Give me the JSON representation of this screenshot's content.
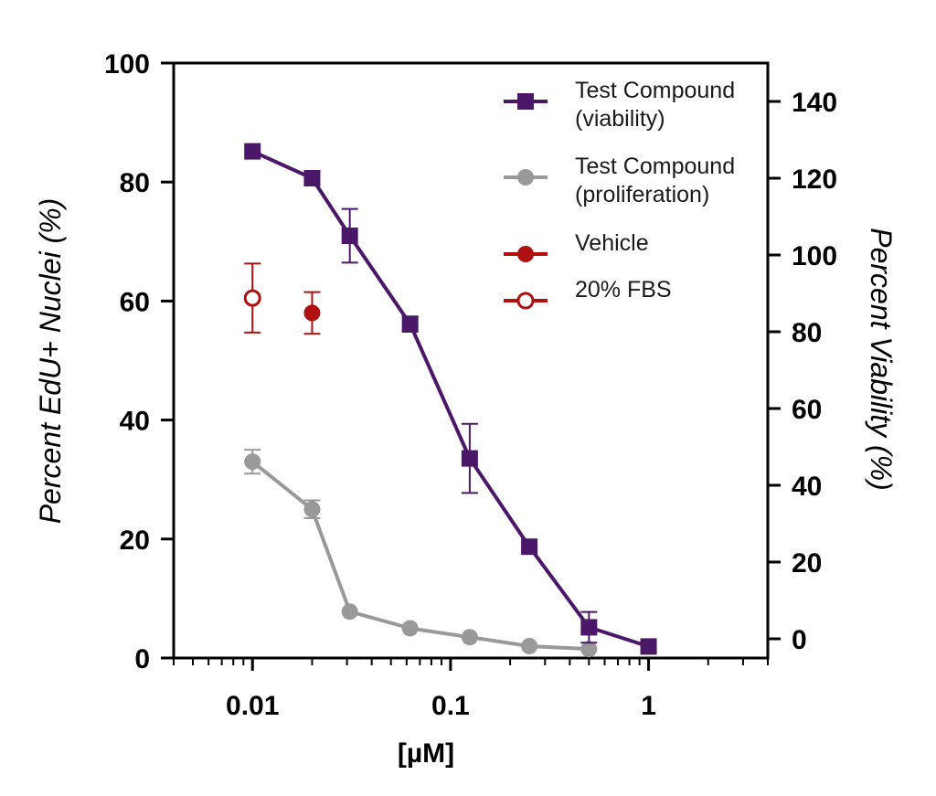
{
  "chart_data": {
    "type": "line",
    "x_scale": "log",
    "xlim": [
      0.004,
      4
    ],
    "xlabel": "[µM]",
    "x_ticks": [
      0.01,
      0.1,
      1
    ],
    "x_tick_labels": [
      "0.01",
      "0.1",
      "1"
    ],
    "ylabel_left": "Percent EdU+ Nuclei (%)",
    "ylim_left": [
      0,
      100
    ],
    "y_ticks_left": [
      0,
      20,
      40,
      60,
      80,
      100
    ],
    "y_tick_labels_left": [
      "0",
      "20",
      "40",
      "60",
      "80",
      "100"
    ],
    "ylabel_right": "Percent Viability (%)",
    "ylim_right": [
      -5,
      150
    ],
    "y_ticks_right": [
      0,
      20,
      40,
      60,
      80,
      100,
      120,
      140
    ],
    "y_tick_labels_right": [
      "0",
      "20",
      "40",
      "60",
      "80",
      "100",
      "120",
      "140"
    ],
    "grid": false,
    "legend_position": "top-right",
    "series": [
      {
        "name": "Test Compound\n(viability)",
        "legend_lines": [
          "Test Compound",
          "(viability)"
        ],
        "axis": "right",
        "color": "#4b1869",
        "marker": "square",
        "filled": true,
        "connected": true,
        "x": [
          0.01,
          0.02,
          0.031,
          0.0625,
          0.125,
          0.25,
          0.5,
          1
        ],
        "y": [
          127,
          120,
          105,
          82,
          47,
          24,
          3,
          -2
        ],
        "err": [
          0,
          0,
          7,
          2,
          9,
          0,
          4,
          0
        ]
      },
      {
        "name": "Test Compound\n(proliferation)",
        "legend_lines": [
          "Test Compound",
          "(proliferation)"
        ],
        "axis": "left",
        "color": "#999999",
        "marker": "circle",
        "filled": true,
        "connected": true,
        "x": [
          0.01,
          0.02,
          0.031,
          0.0625,
          0.125,
          0.25,
          0.5
        ],
        "y": [
          33,
          25,
          7.8,
          5,
          3.5,
          2,
          1.5
        ],
        "err": [
          2,
          1.5,
          0,
          0,
          0,
          0,
          0
        ]
      },
      {
        "name": "Vehicle",
        "legend_lines": [
          "Vehicle"
        ],
        "axis": "left",
        "color": "#b01010",
        "marker": "circle",
        "filled": true,
        "connected": false,
        "x": [
          0.02
        ],
        "y": [
          58
        ],
        "err": [
          3.5
        ]
      },
      {
        "name": "20% FBS",
        "legend_lines": [
          "20% FBS"
        ],
        "axis": "left",
        "color": "#b01010",
        "marker": "circle",
        "filled": false,
        "connected": false,
        "x": [
          0.01
        ],
        "y": [
          60.5
        ],
        "err": [
          5.8
        ]
      }
    ]
  }
}
